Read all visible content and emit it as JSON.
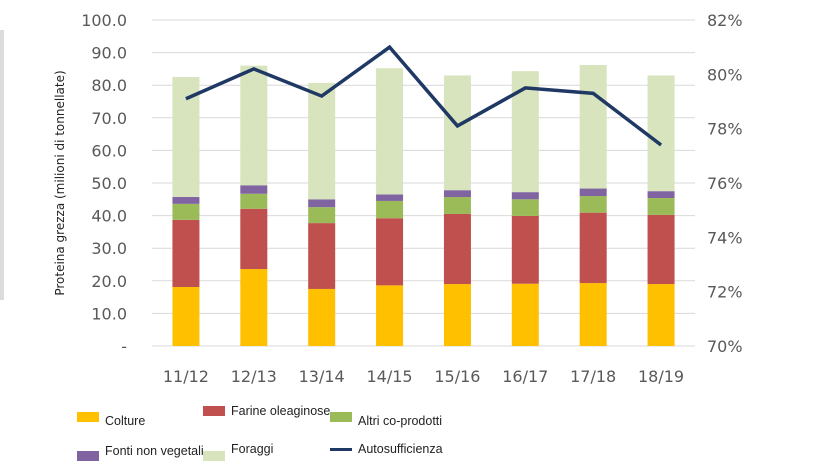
{
  "chart_data": {
    "type": "bar",
    "stacked": true,
    "categories": [
      "11/12",
      "12/13",
      "13/14",
      "14/15",
      "15/16",
      "16/17",
      "17/18",
      "18/19"
    ],
    "ylabel": "Proteina grezza (milioni di tonnellate)",
    "ylim": [
      0,
      100
    ],
    "yticks": [
      "-",
      "10.0",
      "20.0",
      "30.0",
      "40.0",
      "50.0",
      "60.0",
      "70.0",
      "80.0",
      "90.0",
      "100.0"
    ],
    "y2lim": [
      70,
      82
    ],
    "y2ticks": [
      "70%",
      "72%",
      "74%",
      "76%",
      "78%",
      "80%",
      "82%"
    ],
    "grid": true,
    "legend_position": "bottom",
    "series": [
      {
        "name": "Colture",
        "color": "#FFC000",
        "values": [
          18.1,
          23.6,
          17.5,
          18.6,
          19.0,
          19.1,
          19.3,
          19.0
        ]
      },
      {
        "name": "Farine oleaginose",
        "color": "#C0504D",
        "values": [
          20.6,
          18.5,
          20.2,
          20.6,
          21.5,
          20.8,
          21.6,
          21.2
        ]
      },
      {
        "name": "Altri co-prodotti",
        "color": "#9BBB59",
        "values": [
          4.9,
          4.6,
          4.9,
          5.3,
          5.2,
          5.1,
          5.1,
          5.2
        ]
      },
      {
        "name": "Fonti non vegetali",
        "color": "#8064A2",
        "values": [
          2.1,
          2.6,
          2.4,
          2.0,
          2.1,
          2.2,
          2.3,
          2.1
        ]
      },
      {
        "name": "Foraggi",
        "color": "#D7E4BD",
        "values": [
          36.8,
          36.7,
          35.7,
          38.7,
          35.2,
          37.1,
          37.9,
          35.5
        ]
      }
    ],
    "line_series": {
      "name": "Autosufficienza",
      "type": "line",
      "axis": "right",
      "color": "#1F3864",
      "values": [
        79.1,
        80.2,
        79.2,
        81.0,
        78.1,
        79.5,
        79.3,
        77.4
      ]
    }
  }
}
